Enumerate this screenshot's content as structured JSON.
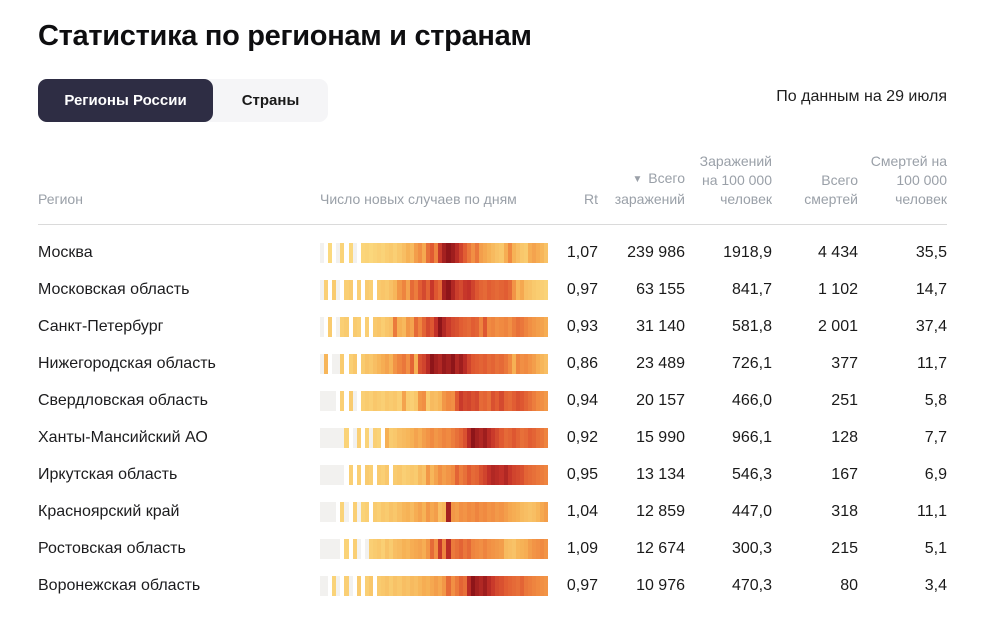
{
  "page": {
    "title": "Статистика по регионам и странам",
    "data_note": "По данным на 29 июля"
  },
  "tabs": [
    {
      "label": "Регионы России",
      "active": true
    },
    {
      "label": "Страны",
      "active": false
    }
  ],
  "table": {
    "headers": {
      "region": "Регион",
      "daily_cases": "Число новых случаев по дням",
      "rt": "Rt",
      "sort_indicator": "▼",
      "total_cases": "Всего заражений",
      "cases_per_100k": "Заражений на 100 000 человек",
      "total_deaths": "Всего смертей",
      "deaths_per_100k": "Смертей на 100 000 человек"
    },
    "rows": [
      {
        "region": "Москва",
        "rt": "1,07",
        "total_cases": "239 986",
        "cases_per_100k": "1918,9",
        "total_deaths": "4 434",
        "deaths_per_100k": "35,5",
        "daily_heat": [
          0,
          -1,
          25,
          -1,
          0,
          28,
          -1,
          26,
          0,
          -1,
          27,
          28,
          26,
          28,
          30,
          28,
          31,
          33,
          30,
          34,
          38,
          44,
          40,
          52,
          58,
          48,
          68,
          75,
          62,
          85,
          95,
          100,
          96,
          90,
          82,
          74,
          66,
          58,
          66,
          52,
          48,
          44,
          40,
          36,
          34,
          46,
          60,
          44,
          38,
          34,
          32,
          46,
          50,
          46,
          42,
          36
        ]
      },
      {
        "region": "Московская область",
        "rt": "0,97",
        "total_cases": "63 155",
        "cases_per_100k": "841,7",
        "total_deaths": "1 102",
        "deaths_per_100k": "14,7",
        "daily_heat": [
          0,
          30,
          -1,
          32,
          0,
          -1,
          30,
          32,
          -1,
          30,
          -1,
          32,
          30,
          -1,
          33,
          35,
          33,
          37,
          42,
          55,
          62,
          50,
          70,
          64,
          74,
          80,
          72,
          86,
          76,
          70,
          95,
          100,
          92,
          84,
          80,
          86,
          88,
          82,
          76,
          72,
          70,
          74,
          72,
          70,
          72,
          74,
          70,
          56,
          42,
          48,
          38,
          36,
          33,
          31,
          30,
          28
        ]
      },
      {
        "region": "Санкт-Петербург",
        "rt": "0,93",
        "total_cases": "31 140",
        "cases_per_100k": "581,8",
        "total_deaths": "2 001",
        "deaths_per_100k": "37,4",
        "daily_heat": [
          0,
          -1,
          32,
          -1,
          0,
          30,
          32,
          -1,
          32,
          30,
          -1,
          30,
          -1,
          33,
          35,
          31,
          35,
          37,
          65,
          45,
          41,
          55,
          50,
          70,
          62,
          72,
          80,
          76,
          88,
          100,
          92,
          85,
          80,
          78,
          74,
          72,
          70,
          74,
          72,
          62,
          76,
          60,
          62,
          58,
          60,
          62,
          58,
          64,
          68,
          66,
          62,
          58,
          55,
          52,
          50,
          46
        ]
      },
      {
        "region": "Нижегородская область",
        "rt": "0,86",
        "total_cases": "23 489",
        "cases_per_100k": "726,1",
        "total_deaths": "377",
        "deaths_per_100k": "11,7",
        "daily_heat": [
          0,
          42,
          -1,
          0,
          0,
          32,
          -1,
          30,
          34,
          -1,
          32,
          36,
          34,
          38,
          42,
          46,
          50,
          44,
          56,
          62,
          66,
          58,
          72,
          45,
          78,
          82,
          90,
          100,
          95,
          92,
          98,
          95,
          100,
          92,
          96,
          90,
          82,
          76,
          74,
          72,
          74,
          70,
          72,
          68,
          70,
          66,
          60,
          45,
          62,
          58,
          60,
          56,
          52,
          46,
          42,
          38
        ]
      },
      {
        "region": "Свердловская область",
        "rt": "0,94",
        "total_cases": "20 157",
        "cases_per_100k": "466,0",
        "total_deaths": "251",
        "deaths_per_100k": "5,8",
        "daily_heat": [
          0,
          0,
          0,
          0,
          -1,
          30,
          -1,
          32,
          0,
          -1,
          30,
          32,
          30,
          34,
          32,
          30,
          34,
          32,
          34,
          30,
          50,
          32,
          30,
          34,
          55,
          58,
          32,
          40,
          38,
          42,
          55,
          60,
          58,
          75,
          85,
          80,
          82,
          78,
          80,
          70,
          72,
          68,
          78,
          74,
          80,
          72,
          70,
          74,
          78,
          76,
          72,
          68,
          64,
          60,
          58,
          54
        ]
      },
      {
        "region": "Ханты-Мансийский АО",
        "rt": "0,92",
        "total_cases": "15 990",
        "cases_per_100k": "966,1",
        "total_deaths": "128",
        "deaths_per_100k": "7,7",
        "daily_heat": [
          0,
          0,
          0,
          0,
          0,
          0,
          28,
          -1,
          0,
          30,
          -1,
          28,
          0,
          30,
          28,
          -1,
          45,
          32,
          34,
          38,
          40,
          42,
          45,
          50,
          46,
          52,
          56,
          60,
          55,
          58,
          62,
          60,
          64,
          68,
          72,
          78,
          90,
          100,
          95,
          92,
          96,
          90,
          85,
          80,
          75,
          70,
          72,
          76,
          72,
          68,
          70,
          74,
          72,
          68,
          66,
          62
        ]
      },
      {
        "region": "Иркутская область",
        "rt": "0,95",
        "total_cases": "13 134",
        "cases_per_100k": "546,3",
        "total_deaths": "167",
        "deaths_per_100k": "6,9",
        "daily_heat": [
          0,
          0,
          0,
          0,
          0,
          0,
          -1,
          30,
          -1,
          30,
          -1,
          32,
          30,
          -1,
          32,
          30,
          34,
          -1,
          32,
          34,
          30,
          32,
          34,
          32,
          40,
          36,
          55,
          42,
          50,
          58,
          52,
          56,
          60,
          72,
          64,
          68,
          75,
          70,
          72,
          78,
          82,
          88,
          92,
          90,
          88,
          92,
          86,
          82,
          80,
          78,
          72,
          70,
          68,
          66,
          64,
          62
        ]
      },
      {
        "region": "Красноярский край",
        "rt": "1,04",
        "total_cases": "12 859",
        "cases_per_100k": "447,0",
        "total_deaths": "318",
        "deaths_per_100k": "11,1",
        "daily_heat": [
          0,
          0,
          0,
          0,
          -1,
          28,
          0,
          -1,
          30,
          0,
          28,
          30,
          -1,
          32,
          30,
          34,
          32,
          36,
          34,
          38,
          42,
          44,
          40,
          46,
          50,
          44,
          55,
          48,
          52,
          38,
          42,
          95,
          55,
          52,
          58,
          56,
          60,
          58,
          62,
          58,
          60,
          56,
          58,
          54,
          56,
          52,
          48,
          46,
          44,
          40,
          38,
          36,
          38,
          42,
          48,
          52
        ]
      },
      {
        "region": "Ростовская область",
        "rt": "1,09",
        "total_cases": "12 674",
        "cases_per_100k": "300,3",
        "total_deaths": "215",
        "deaths_per_100k": "5,1",
        "daily_heat": [
          0,
          0,
          0,
          0,
          0,
          -1,
          28,
          -1,
          30,
          0,
          -1,
          0,
          30,
          32,
          34,
          30,
          36,
          32,
          38,
          40,
          44,
          42,
          46,
          48,
          50,
          46,
          55,
          70,
          58,
          85,
          62,
          90,
          65,
          68,
          72,
          66,
          70,
          62,
          60,
          58,
          62,
          58,
          56,
          54,
          52,
          40,
          38,
          36,
          42,
          44,
          46,
          52,
          56,
          58,
          60,
          56
        ]
      },
      {
        "region": "Воронежская область",
        "rt": "0,97",
        "total_cases": "10 976",
        "cases_per_100k": "470,3",
        "total_deaths": "80",
        "deaths_per_100k": "3,4",
        "daily_heat": [
          0,
          0,
          -1,
          28,
          0,
          -1,
          30,
          0,
          -1,
          32,
          -1,
          30,
          34,
          -1,
          32,
          34,
          36,
          32,
          36,
          34,
          38,
          36,
          40,
          38,
          42,
          46,
          44,
          48,
          52,
          48,
          55,
          70,
          58,
          65,
          72,
          68,
          90,
          100,
          95,
          92,
          96,
          90,
          85,
          80,
          78,
          74,
          72,
          70,
          68,
          72,
          66,
          64,
          62,
          60,
          58,
          56
        ]
      }
    ]
  },
  "colors": {
    "tab_active_bg": "#2e2d44",
    "tab_group_bg": "#f5f5f7",
    "header_text": "#9aa0a8",
    "divider": "#dadada",
    "heat_scale": {
      "zero": "#f2f1ef",
      "gap": "#ffffff",
      "stops": [
        [
          1,
          "#fdeeb0"
        ],
        [
          25,
          "#fbd97e"
        ],
        [
          45,
          "#f6b054"
        ],
        [
          60,
          "#f08a41"
        ],
        [
          75,
          "#e05a32"
        ],
        [
          88,
          "#c23129"
        ],
        [
          100,
          "#8e1519"
        ]
      ]
    }
  }
}
